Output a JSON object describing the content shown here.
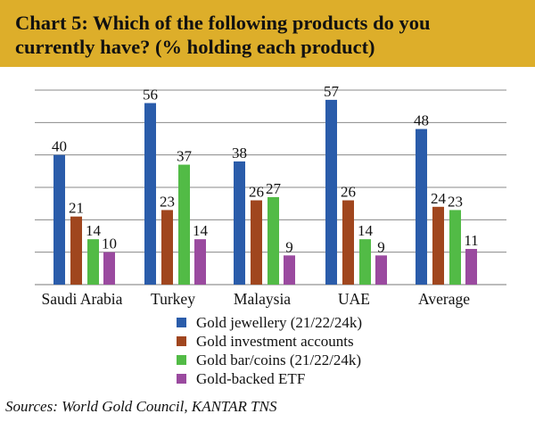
{
  "chart_data": {
    "type": "bar",
    "title": "Chart 5: Which of the following products do you currently have? (% holding each product)",
    "categories": [
      "Saudi Arabia",
      "Turkey",
      "Malaysia",
      "UAE",
      "Average"
    ],
    "series": [
      {
        "name": "Gold jewellery (21/22/24k)",
        "color": "#2A5CAA",
        "values": [
          40,
          56,
          38,
          57,
          48
        ]
      },
      {
        "name": "Gold investment accounts",
        "color": "#A0461E",
        "values": [
          21,
          23,
          26,
          26,
          24
        ]
      },
      {
        "name": "Gold bar/coins (21/22/24k)",
        "color": "#52BB46",
        "values": [
          14,
          37,
          27,
          14,
          23
        ]
      },
      {
        "name": "Gold-backed ETF",
        "color": "#9A4A9F",
        "values": [
          10,
          14,
          9,
          9,
          11
        ]
      }
    ],
    "xlabel": "",
    "ylabel": "",
    "ylim": [
      0,
      60
    ],
    "ytick_step": 10,
    "y_tick_labels_shown": false,
    "grid": true,
    "data_labels": true,
    "legend_position": "bottom",
    "header_color": "#DDAE2A"
  },
  "source": "Sources: World Gold Council, KANTAR TNS"
}
